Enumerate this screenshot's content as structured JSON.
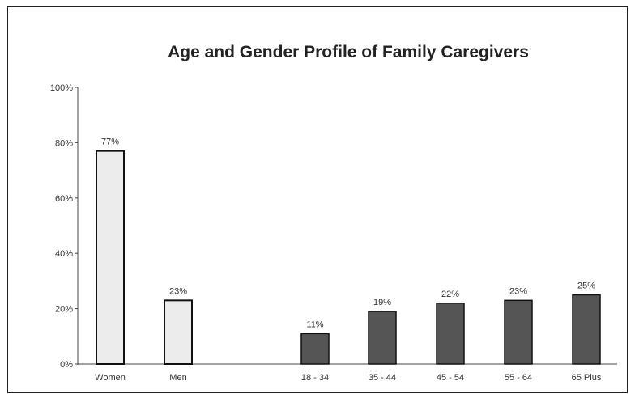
{
  "chart_data": {
    "type": "bar",
    "title": "Age and Gender Profile of Family Caregivers",
    "xlabel": "",
    "ylabel": "",
    "ylim": [
      0,
      100
    ],
    "yticks": [
      "0%",
      "20%",
      "40%",
      "60%",
      "80%",
      "100%"
    ],
    "categories": [
      "Women",
      "Men",
      "18 - 34",
      "35 - 44",
      "45 - 54",
      "55 - 64",
      "65 Plus"
    ],
    "values": [
      77,
      23,
      11,
      19,
      22,
      23,
      25
    ],
    "data_labels": [
      "77%",
      "23%",
      "11%",
      "19%",
      "22%",
      "23%",
      "25%"
    ],
    "colors": {
      "gender_bar": "#ececec",
      "age_bar": "#555555",
      "outline": "#111111",
      "axis": "#444444",
      "text": "#333333"
    },
    "grid": false,
    "legend": "none"
  }
}
